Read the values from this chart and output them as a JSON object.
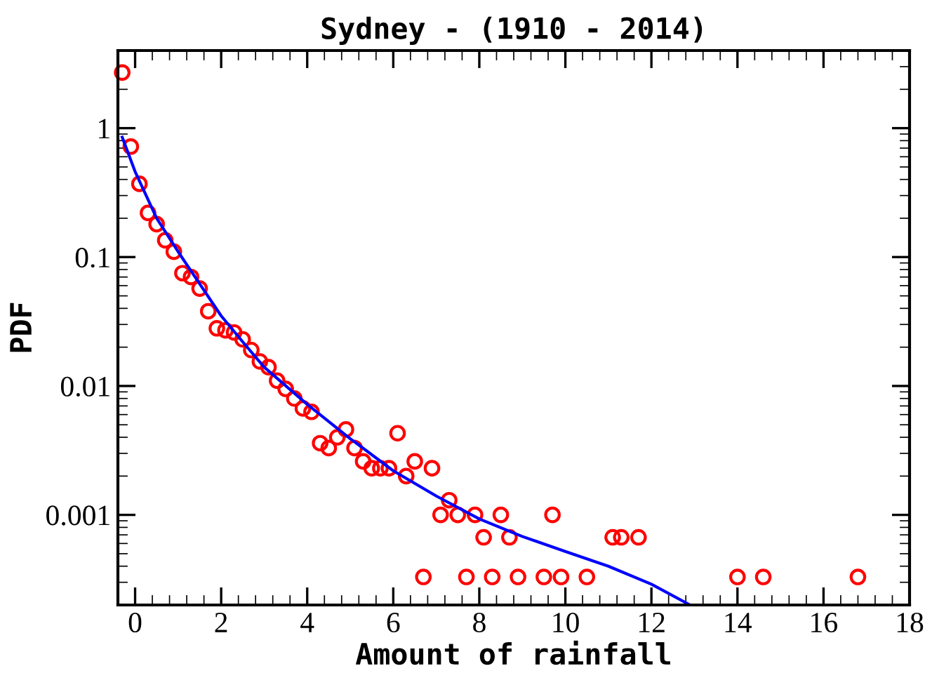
{
  "chart_data": {
    "type": "scatter",
    "title": "Sydney - (1910 - 2014)",
    "xlabel": "Amount of rainfall",
    "ylabel": "PDF",
    "log": "y",
    "grid": false,
    "legend": false,
    "xlim": [
      -0.4,
      18
    ],
    "xticks": [
      0,
      2,
      4,
      6,
      8,
      10,
      12,
      14,
      16,
      18
    ],
    "ylim": [
      0.0002,
      4
    ],
    "yticks": [
      0.001,
      0.01,
      0.1,
      1
    ],
    "series": [
      {
        "color": "#ff0000",
        "marker": "circle",
        "x": [
          -0.3,
          -0.1,
          0.1,
          0.3,
          0.5,
          0.7,
          0.9,
          1.1,
          1.3,
          1.5,
          1.7,
          1.9,
          2.1,
          2.3,
          2.5,
          2.7,
          2.9,
          3.1,
          3.3,
          3.5,
          3.7,
          3.9,
          4.1,
          4.3,
          4.5,
          4.7,
          4.9,
          5.1,
          5.3,
          5.5,
          5.7,
          5.9,
          6.1,
          6.3,
          6.5,
          6.7,
          6.9,
          7.1,
          7.3,
          7.5,
          7.7,
          7.9,
          8.1,
          8.3,
          8.5,
          8.7,
          8.9,
          9.5,
          9.7,
          9.9,
          10.5,
          11.1,
          11.3,
          11.7,
          14.0,
          14.6,
          16.8
        ],
        "values": [
          2.7,
          0.72,
          0.37,
          0.22,
          0.18,
          0.135,
          0.11,
          0.075,
          0.07,
          0.057,
          0.038,
          0.028,
          0.027,
          0.026,
          0.023,
          0.019,
          0.0155,
          0.014,
          0.011,
          0.0095,
          0.008,
          0.0067,
          0.0063,
          0.0036,
          0.0033,
          0.004,
          0.0046,
          0.0033,
          0.0026,
          0.0023,
          0.0023,
          0.0023,
          0.0043,
          0.002,
          0.0026,
          0.00033,
          0.0023,
          0.001,
          0.0013,
          0.001,
          0.00033,
          0.001,
          0.00067,
          0.00033,
          0.001,
          0.00067,
          0.00033,
          0.00033,
          0.001,
          0.00033,
          0.00033,
          0.00067,
          0.00067,
          0.00067,
          0.00033,
          0.00033,
          0.00033
        ]
      },
      {
        "type": "line",
        "color": "#0000ff",
        "marker": "none",
        "line_style": "solid",
        "x": [
          -0.3,
          0,
          0.5,
          1,
          1.5,
          2,
          2.5,
          3,
          4,
          5,
          6,
          7,
          8,
          9,
          10,
          11,
          12,
          12.9
        ],
        "values": [
          0.85,
          0.46,
          0.2,
          0.11,
          0.062,
          0.035,
          0.022,
          0.014,
          0.0072,
          0.0039,
          0.0022,
          0.0014,
          0.00093,
          0.00068,
          0.00052,
          0.0004,
          0.00029,
          0.0002
        ]
      }
    ]
  }
}
